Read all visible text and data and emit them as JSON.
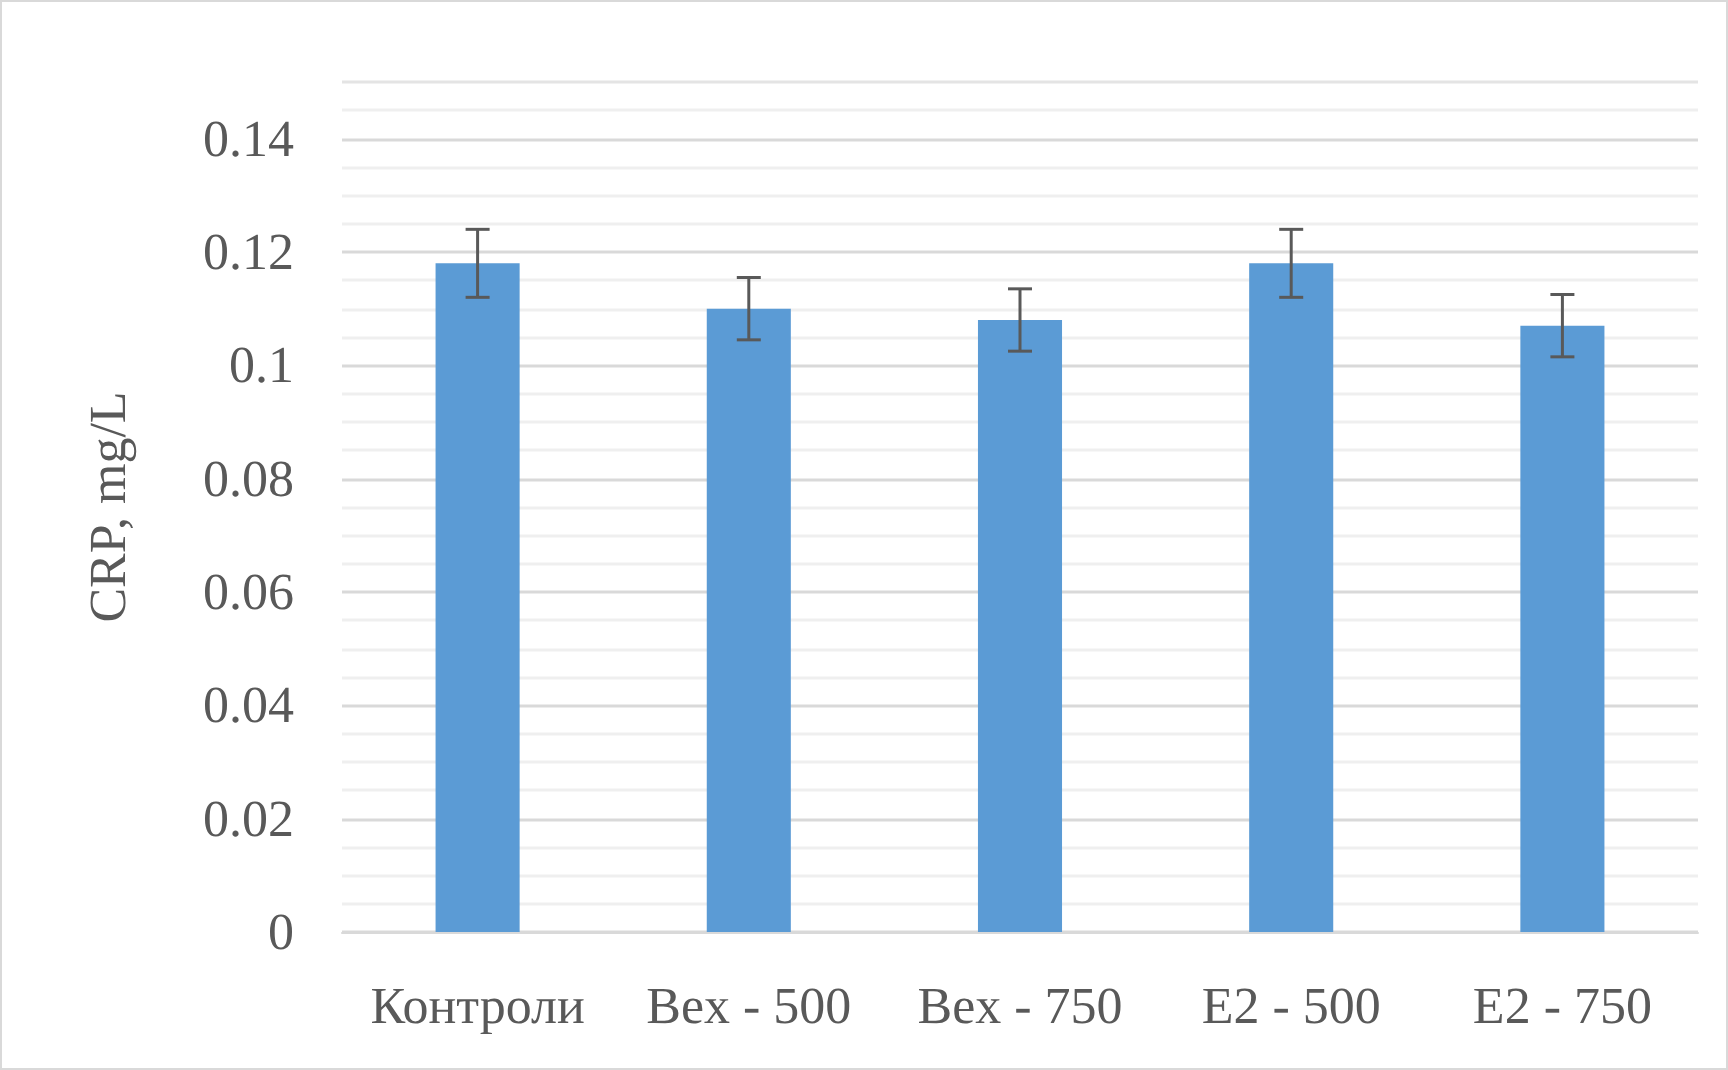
{
  "chart_data": {
    "type": "bar",
    "ylabel": "CRP, mg/L",
    "categories": [
      "Контроли",
      "Bex - 500",
      "Bex - 750",
      "E2 - 500",
      "E2 - 750"
    ],
    "values": [
      0.118,
      0.11,
      0.108,
      0.118,
      0.107
    ],
    "errors": [
      0.006,
      0.0055,
      0.0055,
      0.006,
      0.0055
    ],
    "color": "#5b9bd5",
    "ylim": [
      0,
      0.15
    ],
    "yticks": [
      0,
      0.02,
      0.04,
      0.06,
      0.08,
      0.1,
      0.12,
      0.14
    ],
    "grid": "y"
  }
}
